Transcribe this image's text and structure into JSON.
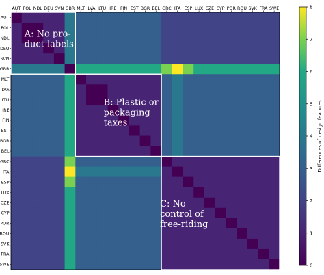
{
  "chart_data": {
    "type": "heatmap",
    "countries": [
      "AUT",
      "POL",
      "NDL",
      "DEU",
      "SVN",
      "GBR",
      "MLT",
      "LVA",
      "LTU",
      "IRE",
      "FIN",
      "EST",
      "BGR",
      "BEL",
      "GRC",
      "ITA",
      "ESP",
      "LUX",
      "CZE",
      "CYP",
      "POR",
      "ROU",
      "SVK",
      "FRA",
      "SWE"
    ],
    "values": [
      [
        0,
        1,
        1,
        1,
        1,
        4,
        3,
        3,
        3,
        3,
        3,
        3,
        3,
        3,
        2,
        2,
        2,
        2,
        2,
        2,
        2,
        2,
        2,
        2,
        2
      ],
      [
        1,
        0,
        0,
        1,
        1,
        4,
        3,
        3,
        3,
        3,
        3,
        3,
        3,
        3,
        2,
        2,
        2,
        2,
        2,
        2,
        2,
        2,
        2,
        2,
        2
      ],
      [
        1,
        0,
        0,
        1,
        1,
        4,
        3,
        3,
        3,
        3,
        3,
        3,
        3,
        3,
        2,
        2,
        2,
        2,
        2,
        2,
        2,
        2,
        2,
        2,
        2
      ],
      [
        1,
        1,
        1,
        0,
        1,
        4,
        3,
        3,
        3,
        3,
        3,
        3,
        3,
        3,
        2,
        2,
        2,
        2,
        2,
        2,
        2,
        2,
        2,
        2,
        2
      ],
      [
        1,
        1,
        1,
        1,
        0,
        4,
        3,
        3,
        3,
        3,
        3,
        3,
        3,
        3,
        2,
        2,
        2,
        2,
        2,
        2,
        2,
        2,
        2,
        2,
        2
      ],
      [
        4,
        4,
        4,
        4,
        4,
        0,
        6,
        6,
        6,
        6,
        6,
        6,
        6,
        6,
        7,
        8,
        7,
        6,
        6,
        6,
        6,
        6,
        6,
        6,
        6
      ],
      [
        3,
        3,
        3,
        3,
        3,
        6,
        0,
        1,
        1,
        1,
        1,
        1,
        1,
        1,
        3,
        4,
        3,
        3,
        3,
        3,
        3,
        3,
        3,
        3,
        3
      ],
      [
        3,
        3,
        3,
        3,
        3,
        6,
        1,
        0,
        0,
        1,
        1,
        1,
        1,
        1,
        3,
        4,
        3,
        3,
        3,
        3,
        3,
        3,
        3,
        3,
        3
      ],
      [
        3,
        3,
        3,
        3,
        3,
        6,
        1,
        0,
        0,
        1,
        1,
        1,
        1,
        1,
        3,
        4,
        3,
        3,
        3,
        3,
        3,
        3,
        3,
        3,
        3
      ],
      [
        3,
        3,
        3,
        3,
        3,
        6,
        1,
        1,
        1,
        0,
        1,
        1,
        1,
        1,
        3,
        4,
        3,
        3,
        3,
        3,
        3,
        3,
        3,
        3,
        3
      ],
      [
        3,
        3,
        3,
        3,
        3,
        6,
        1,
        1,
        1,
        1,
        0,
        1,
        1,
        1,
        3,
        4,
        3,
        3,
        3,
        3,
        3,
        3,
        3,
        3,
        3
      ],
      [
        3,
        3,
        3,
        3,
        3,
        6,
        1,
        1,
        1,
        1,
        1,
        0,
        1,
        1,
        3,
        4,
        3,
        3,
        3,
        3,
        3,
        3,
        3,
        3,
        3
      ],
      [
        3,
        3,
        3,
        3,
        3,
        6,
        1,
        1,
        1,
        1,
        1,
        1,
        0,
        1,
        3,
        4,
        3,
        3,
        3,
        3,
        3,
        3,
        3,
        3,
        3
      ],
      [
        3,
        3,
        3,
        3,
        3,
        6,
        1,
        1,
        1,
        1,
        1,
        1,
        1,
        0,
        3,
        4,
        3,
        3,
        3,
        3,
        3,
        3,
        3,
        3,
        3
      ],
      [
        2,
        2,
        2,
        2,
        2,
        7,
        3,
        3,
        3,
        3,
        3,
        3,
        3,
        3,
        0,
        1,
        1,
        1,
        1,
        1,
        1,
        1,
        1,
        1,
        1
      ],
      [
        2,
        2,
        2,
        2,
        2,
        8,
        4,
        4,
        4,
        4,
        4,
        4,
        4,
        4,
        1,
        0,
        1,
        1,
        1,
        1,
        1,
        1,
        1,
        1,
        1
      ],
      [
        2,
        2,
        2,
        2,
        2,
        7,
        3,
        3,
        3,
        3,
        3,
        3,
        3,
        3,
        1,
        1,
        0,
        1,
        1,
        1,
        1,
        1,
        1,
        1,
        1
      ],
      [
        2,
        2,
        2,
        2,
        2,
        6,
        3,
        3,
        3,
        3,
        3,
        3,
        3,
        3,
        1,
        1,
        1,
        0,
        1,
        1,
        1,
        1,
        1,
        1,
        1
      ],
      [
        2,
        2,
        2,
        2,
        2,
        6,
        3,
        3,
        3,
        3,
        3,
        3,
        3,
        3,
        1,
        1,
        1,
        1,
        0,
        1,
        1,
        1,
        1,
        1,
        1
      ],
      [
        2,
        2,
        2,
        2,
        2,
        6,
        3,
        3,
        3,
        3,
        3,
        3,
        3,
        3,
        1,
        1,
        1,
        1,
        1,
        0,
        1,
        1,
        1,
        1,
        1
      ],
      [
        2,
        2,
        2,
        2,
        2,
        6,
        3,
        3,
        3,
        3,
        3,
        3,
        3,
        3,
        1,
        1,
        1,
        1,
        1,
        1,
        0,
        1,
        1,
        1,
        1
      ],
      [
        2,
        2,
        2,
        2,
        2,
        6,
        3,
        3,
        3,
        3,
        3,
        3,
        3,
        3,
        1,
        1,
        1,
        1,
        1,
        1,
        1,
        0,
        1,
        1,
        1
      ],
      [
        2,
        2,
        2,
        2,
        2,
        6,
        3,
        3,
        3,
        3,
        3,
        3,
        3,
        3,
        1,
        1,
        1,
        1,
        1,
        1,
        1,
        1,
        0,
        1,
        1
      ],
      [
        2,
        2,
        2,
        2,
        2,
        6,
        3,
        3,
        3,
        3,
        3,
        3,
        3,
        3,
        1,
        1,
        1,
        1,
        1,
        1,
        1,
        1,
        1,
        0,
        1
      ],
      [
        2,
        2,
        2,
        2,
        2,
        6,
        3,
        3,
        3,
        3,
        3,
        3,
        3,
        3,
        1,
        1,
        1,
        1,
        1,
        1,
        1,
        1,
        1,
        1,
        0
      ]
    ],
    "clusters": [
      {
        "label_lines": [
          "A: No pro-",
          "duct labels"
        ],
        "start": "AUT",
        "end": "GBR"
      },
      {
        "label_lines": [
          "B: Plastic or",
          "packaging",
          "taxes"
        ],
        "start": "MLT",
        "end": "BEL"
      },
      {
        "label_lines": [
          "C: No",
          "control of",
          "free-riding"
        ],
        "start": "GRC",
        "end": "SWE"
      }
    ],
    "colorbar": {
      "label": "Differences of design features",
      "range": [
        0,
        8
      ],
      "ticks": [
        0,
        1,
        2,
        3,
        4,
        5,
        6,
        7,
        8
      ],
      "colormap": "viridis"
    }
  }
}
